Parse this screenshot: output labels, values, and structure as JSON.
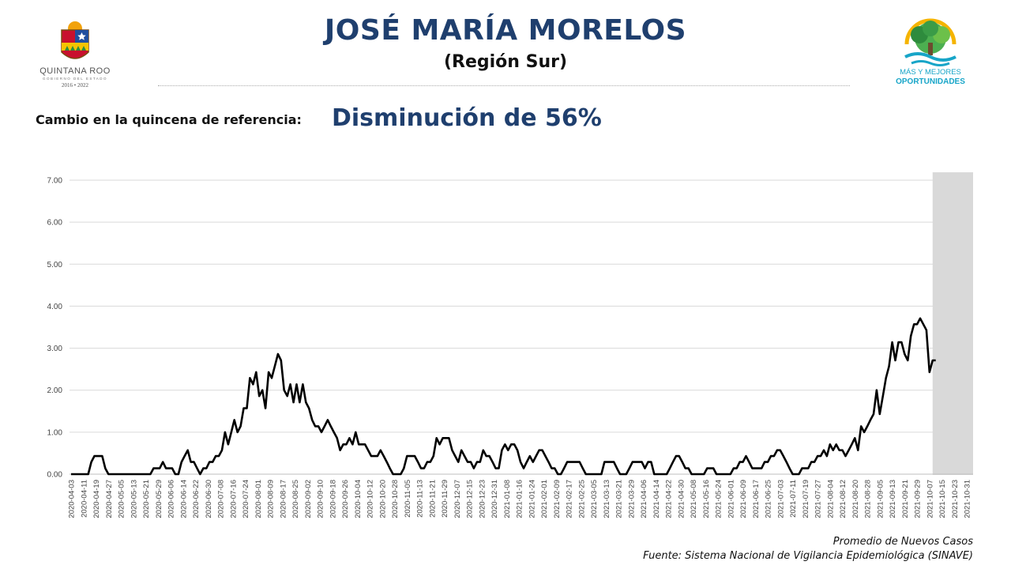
{
  "header": {
    "title": "JOSÉ MARÍA MORELOS",
    "subtitle": "(Región Sur)",
    "left_logo": {
      "state_name": "QUINTANA ROO",
      "government": "GOBIERNO DEL ESTADO",
      "years": "2016 • 2022"
    },
    "right_logo": {
      "line1": "MÁS Y MEJORES",
      "line2": "OPORTUNIDADES"
    }
  },
  "change": {
    "label": "Cambio en la quincena de referencia:",
    "value": "Disminución de 56%"
  },
  "footer": {
    "series_note": "Promedio de Nuevos Casos",
    "source": "Fuente: Sistema Nacional de Vigilancia Epidemiológica (SINAVE)"
  },
  "chart_data": {
    "type": "line",
    "x_start": "2020-04-03",
    "x_end": "2021-11-03",
    "x_tick_labels": [
      "2020-04-03",
      "2020-04-11",
      "2020-04-19",
      "2020-04-27",
      "2020-05-05",
      "2020-05-13",
      "2020-05-21",
      "2020-05-29",
      "2020-06-06",
      "2020-06-14",
      "2020-06-22",
      "2020-06-30",
      "2020-07-08",
      "2020-07-16",
      "2020-07-24",
      "2020-08-01",
      "2020-08-09",
      "2020-08-17",
      "2020-08-25",
      "2020-09-02",
      "2020-09-10",
      "2020-09-18",
      "2020-09-26",
      "2020-10-04",
      "2020-10-12",
      "2020-10-20",
      "2020-10-28",
      "2020-11-05",
      "2020-11-13",
      "2020-11-21",
      "2020-11-29",
      "2020-12-07",
      "2020-12-15",
      "2020-12-23",
      "2020-12-31",
      "2021-01-08",
      "2021-01-16",
      "2021-01-24",
      "2021-02-01",
      "2021-02-09",
      "2021-02-17",
      "2021-02-25",
      "2021-03-05",
      "2021-03-13",
      "2021-03-21",
      "2021-03-29",
      "2021-04-06",
      "2021-04-14",
      "2021-04-22",
      "2021-04-30",
      "2021-05-08",
      "2021-05-16",
      "2021-05-24",
      "2021-06-01",
      "2021-06-09",
      "2021-06-17",
      "2021-06-25",
      "2021-07-03",
      "2021-07-11",
      "2021-07-19",
      "2021-07-27",
      "2021-08-04",
      "2021-08-12",
      "2021-08-20",
      "2021-08-28",
      "2021-09-05",
      "2021-09-13",
      "2021-09-21",
      "2021-09-29",
      "2021-10-07",
      "2021-10-15",
      "2021-10-23",
      "2021-10-31"
    ],
    "y_tick_labels": [
      "0.00",
      "1.00",
      "2.00",
      "3.00",
      "4.00",
      "5.00",
      "6.00",
      "7.00"
    ],
    "ylim": [
      0,
      7
    ],
    "grid": "horizontal",
    "highlight_start": "2021-10-09",
    "line_color": "#000000",
    "highlight_color": "#d9d9d9",
    "points": [
      [
        "2020-04-03",
        0
      ],
      [
        "2020-04-14",
        0
      ],
      [
        "2020-04-16",
        0.29
      ],
      [
        "2020-04-18",
        0.43
      ],
      [
        "2020-04-23",
        0.43
      ],
      [
        "2020-04-25",
        0.14
      ],
      [
        "2020-04-27",
        0
      ],
      [
        "2020-05-24",
        0
      ],
      [
        "2020-05-26",
        0.14
      ],
      [
        "2020-05-30",
        0.14
      ],
      [
        "2020-06-01",
        0.29
      ],
      [
        "2020-06-03",
        0.14
      ],
      [
        "2020-06-07",
        0.14
      ],
      [
        "2020-06-09",
        0
      ],
      [
        "2020-06-11",
        0
      ],
      [
        "2020-06-13",
        0.29
      ],
      [
        "2020-06-15",
        0.43
      ],
      [
        "2020-06-17",
        0.57
      ],
      [
        "2020-06-19",
        0.29
      ],
      [
        "2020-06-21",
        0.29
      ],
      [
        "2020-06-23",
        0.14
      ],
      [
        "2020-06-25",
        0
      ],
      [
        "2020-06-27",
        0.14
      ],
      [
        "2020-06-29",
        0.14
      ],
      [
        "2020-07-01",
        0.29
      ],
      [
        "2020-07-03",
        0.29
      ],
      [
        "2020-07-05",
        0.43
      ],
      [
        "2020-07-07",
        0.43
      ],
      [
        "2020-07-09",
        0.57
      ],
      [
        "2020-07-11",
        1.0
      ],
      [
        "2020-07-13",
        0.71
      ],
      [
        "2020-07-15",
        1.0
      ],
      [
        "2020-07-17",
        1.29
      ],
      [
        "2020-07-19",
        1.0
      ],
      [
        "2020-07-21",
        1.14
      ],
      [
        "2020-07-23",
        1.57
      ],
      [
        "2020-07-25",
        1.57
      ],
      [
        "2020-07-27",
        2.29
      ],
      [
        "2020-07-29",
        2.14
      ],
      [
        "2020-07-31",
        2.43
      ],
      [
        "2020-08-02",
        1.86
      ],
      [
        "2020-08-04",
        2.0
      ],
      [
        "2020-08-06",
        1.57
      ],
      [
        "2020-08-08",
        2.43
      ],
      [
        "2020-08-10",
        2.29
      ],
      [
        "2020-08-12",
        2.57
      ],
      [
        "2020-08-14",
        2.86
      ],
      [
        "2020-08-16",
        2.71
      ],
      [
        "2020-08-18",
        2.0
      ],
      [
        "2020-08-20",
        1.86
      ],
      [
        "2020-08-22",
        2.14
      ],
      [
        "2020-08-24",
        1.71
      ],
      [
        "2020-08-26",
        2.14
      ],
      [
        "2020-08-28",
        1.71
      ],
      [
        "2020-08-30",
        2.14
      ],
      [
        "2020-09-01",
        1.71
      ],
      [
        "2020-09-03",
        1.57
      ],
      [
        "2020-09-05",
        1.29
      ],
      [
        "2020-09-07",
        1.14
      ],
      [
        "2020-09-09",
        1.14
      ],
      [
        "2020-09-11",
        1.0
      ],
      [
        "2020-09-13",
        1.14
      ],
      [
        "2020-09-15",
        1.29
      ],
      [
        "2020-09-17",
        1.14
      ],
      [
        "2020-09-19",
        1.0
      ],
      [
        "2020-09-21",
        0.86
      ],
      [
        "2020-09-23",
        0.57
      ],
      [
        "2020-09-25",
        0.71
      ],
      [
        "2020-09-27",
        0.71
      ],
      [
        "2020-09-29",
        0.86
      ],
      [
        "2020-10-01",
        0.71
      ],
      [
        "2020-10-03",
        1.0
      ],
      [
        "2020-10-05",
        0.71
      ],
      [
        "2020-10-07",
        0.71
      ],
      [
        "2020-10-09",
        0.71
      ],
      [
        "2020-10-11",
        0.57
      ],
      [
        "2020-10-13",
        0.43
      ],
      [
        "2020-10-17",
        0.43
      ],
      [
        "2020-10-19",
        0.57
      ],
      [
        "2020-10-21",
        0.43
      ],
      [
        "2020-10-23",
        0.29
      ],
      [
        "2020-10-25",
        0.14
      ],
      [
        "2020-10-27",
        0
      ],
      [
        "2020-11-01",
        0
      ],
      [
        "2020-11-03",
        0.14
      ],
      [
        "2020-11-05",
        0.43
      ],
      [
        "2020-11-10",
        0.43
      ],
      [
        "2020-11-12",
        0.29
      ],
      [
        "2020-11-14",
        0.14
      ],
      [
        "2020-11-16",
        0.14
      ],
      [
        "2020-11-18",
        0.29
      ],
      [
        "2020-11-20",
        0.29
      ],
      [
        "2020-11-22",
        0.43
      ],
      [
        "2020-11-24",
        0.86
      ],
      [
        "2020-11-26",
        0.71
      ],
      [
        "2020-11-28",
        0.86
      ],
      [
        "2020-12-02",
        0.86
      ],
      [
        "2020-12-04",
        0.57
      ],
      [
        "2020-12-06",
        0.43
      ],
      [
        "2020-12-08",
        0.29
      ],
      [
        "2020-12-10",
        0.57
      ],
      [
        "2020-12-12",
        0.43
      ],
      [
        "2020-12-14",
        0.29
      ],
      [
        "2020-12-16",
        0.29
      ],
      [
        "2020-12-18",
        0.14
      ],
      [
        "2020-12-20",
        0.29
      ],
      [
        "2020-12-22",
        0.29
      ],
      [
        "2020-12-24",
        0.57
      ],
      [
        "2020-12-26",
        0.43
      ],
      [
        "2020-12-28",
        0.43
      ],
      [
        "2020-12-30",
        0.29
      ],
      [
        "2021-01-01",
        0.14
      ],
      [
        "2021-01-03",
        0.14
      ],
      [
        "2021-01-05",
        0.57
      ],
      [
        "2021-01-07",
        0.71
      ],
      [
        "2021-01-09",
        0.57
      ],
      [
        "2021-01-11",
        0.71
      ],
      [
        "2021-01-13",
        0.71
      ],
      [
        "2021-01-15",
        0.57
      ],
      [
        "2021-01-17",
        0.29
      ],
      [
        "2021-01-19",
        0.14
      ],
      [
        "2021-01-21",
        0.29
      ],
      [
        "2021-01-23",
        0.43
      ],
      [
        "2021-01-25",
        0.29
      ],
      [
        "2021-01-27",
        0.43
      ],
      [
        "2021-01-29",
        0.57
      ],
      [
        "2021-01-31",
        0.57
      ],
      [
        "2021-02-02",
        0.43
      ],
      [
        "2021-02-04",
        0.29
      ],
      [
        "2021-02-06",
        0.14
      ],
      [
        "2021-02-08",
        0.14
      ],
      [
        "2021-02-10",
        0
      ],
      [
        "2021-02-12",
        0
      ],
      [
        "2021-02-14",
        0.14
      ],
      [
        "2021-02-16",
        0.29
      ],
      [
        "2021-02-24",
        0.29
      ],
      [
        "2021-02-26",
        0.14
      ],
      [
        "2021-02-28",
        0
      ],
      [
        "2021-03-10",
        0
      ],
      [
        "2021-03-12",
        0.29
      ],
      [
        "2021-03-18",
        0.29
      ],
      [
        "2021-03-20",
        0.14
      ],
      [
        "2021-03-22",
        0
      ],
      [
        "2021-03-26",
        0
      ],
      [
        "2021-03-28",
        0.14
      ],
      [
        "2021-03-30",
        0.29
      ],
      [
        "2021-04-05",
        0.29
      ],
      [
        "2021-04-07",
        0.14
      ],
      [
        "2021-04-09",
        0.29
      ],
      [
        "2021-04-11",
        0.29
      ],
      [
        "2021-04-13",
        0
      ],
      [
        "2021-04-21",
        0
      ],
      [
        "2021-04-23",
        0.14
      ],
      [
        "2021-04-25",
        0.29
      ],
      [
        "2021-04-27",
        0.43
      ],
      [
        "2021-04-29",
        0.43
      ],
      [
        "2021-05-01",
        0.29
      ],
      [
        "2021-05-03",
        0.14
      ],
      [
        "2021-05-05",
        0.14
      ],
      [
        "2021-05-07",
        0
      ],
      [
        "2021-05-15",
        0
      ],
      [
        "2021-05-17",
        0.14
      ],
      [
        "2021-05-21",
        0.14
      ],
      [
        "2021-05-23",
        0
      ],
      [
        "2021-06-01",
        0
      ],
      [
        "2021-06-03",
        0.14
      ],
      [
        "2021-06-05",
        0.14
      ],
      [
        "2021-06-07",
        0.29
      ],
      [
        "2021-06-09",
        0.29
      ],
      [
        "2021-06-11",
        0.43
      ],
      [
        "2021-06-13",
        0.29
      ],
      [
        "2021-06-15",
        0.14
      ],
      [
        "2021-06-17",
        0.14
      ],
      [
        "2021-06-19",
        0.14
      ],
      [
        "2021-06-21",
        0.14
      ],
      [
        "2021-06-23",
        0.29
      ],
      [
        "2021-06-25",
        0.29
      ],
      [
        "2021-06-27",
        0.43
      ],
      [
        "2021-06-29",
        0.43
      ],
      [
        "2021-07-01",
        0.57
      ],
      [
        "2021-07-03",
        0.57
      ],
      [
        "2021-07-05",
        0.43
      ],
      [
        "2021-07-07",
        0.29
      ],
      [
        "2021-07-09",
        0.14
      ],
      [
        "2021-07-11",
        0
      ],
      [
        "2021-07-13",
        0
      ],
      [
        "2021-07-15",
        0
      ],
      [
        "2021-07-17",
        0.14
      ],
      [
        "2021-07-19",
        0.14
      ],
      [
        "2021-07-21",
        0.14
      ],
      [
        "2021-07-23",
        0.29
      ],
      [
        "2021-07-25",
        0.29
      ],
      [
        "2021-07-27",
        0.43
      ],
      [
        "2021-07-29",
        0.43
      ],
      [
        "2021-07-31",
        0.57
      ],
      [
        "2021-08-02",
        0.43
      ],
      [
        "2021-08-04",
        0.71
      ],
      [
        "2021-08-06",
        0.57
      ],
      [
        "2021-08-08",
        0.71
      ],
      [
        "2021-08-10",
        0.57
      ],
      [
        "2021-08-12",
        0.57
      ],
      [
        "2021-08-14",
        0.43
      ],
      [
        "2021-08-16",
        0.57
      ],
      [
        "2021-08-18",
        0.71
      ],
      [
        "2021-08-20",
        0.86
      ],
      [
        "2021-08-22",
        0.57
      ],
      [
        "2021-08-24",
        1.14
      ],
      [
        "2021-08-26",
        1.0
      ],
      [
        "2021-08-28",
        1.14
      ],
      [
        "2021-08-30",
        1.29
      ],
      [
        "2021-09-01",
        1.43
      ],
      [
        "2021-09-03",
        2.0
      ],
      [
        "2021-09-05",
        1.43
      ],
      [
        "2021-09-07",
        1.86
      ],
      [
        "2021-09-09",
        2.29
      ],
      [
        "2021-09-11",
        2.57
      ],
      [
        "2021-09-13",
        3.14
      ],
      [
        "2021-09-15",
        2.71
      ],
      [
        "2021-09-17",
        3.14
      ],
      [
        "2021-09-19",
        3.14
      ],
      [
        "2021-09-21",
        2.86
      ],
      [
        "2021-09-23",
        2.71
      ],
      [
        "2021-09-25",
        3.29
      ],
      [
        "2021-09-27",
        3.57
      ],
      [
        "2021-09-29",
        3.57
      ],
      [
        "2021-10-01",
        3.71
      ],
      [
        "2021-10-03",
        3.57
      ],
      [
        "2021-10-05",
        3.43
      ],
      [
        "2021-10-07",
        2.43
      ],
      [
        "2021-10-09",
        2.71
      ],
      [
        "2021-10-11",
        2.71
      ]
    ]
  }
}
